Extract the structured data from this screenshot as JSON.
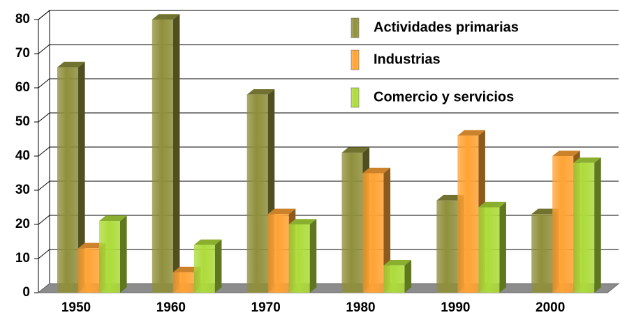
{
  "chart_data": {
    "type": "bar",
    "categories": [
      "1950",
      "1960",
      "1970",
      "1980",
      "1990",
      "2000"
    ],
    "series": [
      {
        "name": "Actividades primarias",
        "color": "#8f8f3c",
        "values": [
          66,
          80,
          58,
          41,
          27,
          23
        ]
      },
      {
        "name": "Industrias",
        "color": "#ffa334",
        "values": [
          13,
          6,
          23,
          35,
          46,
          40
        ]
      },
      {
        "name": "Comercio y servicios",
        "color": "#addb3a",
        "values": [
          21,
          14,
          20,
          8,
          25,
          38
        ]
      }
    ],
    "ylim": [
      0,
      80
    ],
    "yticks": [
      0,
      10,
      20,
      30,
      40,
      50,
      60,
      70,
      80
    ],
    "grid": true
  }
}
